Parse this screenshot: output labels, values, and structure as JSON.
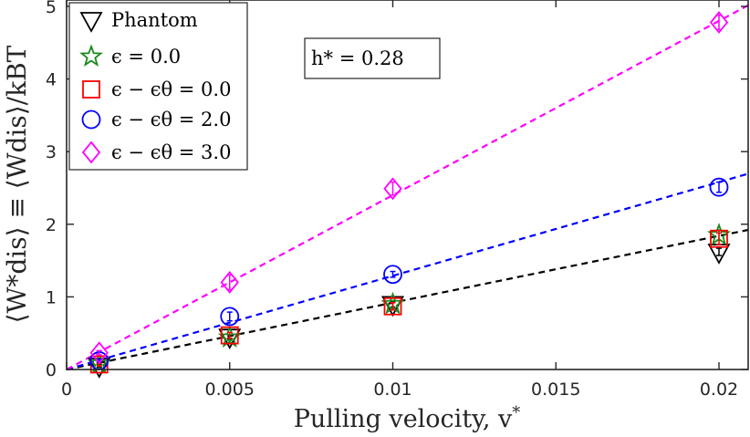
{
  "chart_data": {
    "type": "scatter",
    "title": "",
    "xlabel": "Pulling velocity, v*",
    "ylabel": "⟨W*dis⟩ ≡ ⟨Wdis⟩/kBT",
    "annotation": "h* = 0.28",
    "xlim": [
      0,
      0.021
    ],
    "ylim": [
      0,
      5.1
    ],
    "xticks": [
      0,
      0.005,
      0.01,
      0.015,
      0.02
    ],
    "xtick_labels": [
      "0",
      "0.005",
      "0.01",
      "0.015",
      "0.02"
    ],
    "yticks": [
      0,
      1,
      2,
      3,
      4,
      5
    ],
    "ytick_labels": [
      "0",
      "1",
      "2",
      "3",
      "4",
      "5"
    ],
    "legend_position": "top-left",
    "series": [
      {
        "name": "Phantom",
        "label": "Phantom",
        "marker": "triangle-down",
        "color": "#000000",
        "x": [
          0.001,
          0.005,
          0.01,
          0.02
        ],
        "y": [
          0.05,
          0.45,
          0.9,
          1.62
        ],
        "yerr": [
          0.02,
          0.03,
          0.04,
          0.05
        ]
      },
      {
        "name": "eps=0.0",
        "label": "ϵ = 0.0",
        "marker": "star",
        "color": "#1a8a1a",
        "x": [
          0.001,
          0.005,
          0.01,
          0.02
        ],
        "y": [
          0.08,
          0.44,
          0.9,
          1.85
        ],
        "yerr": [
          0.02,
          0.04,
          0.05,
          0.07
        ]
      },
      {
        "name": "eps-eps_theta=0.0",
        "label": "ϵ − ϵθ = 0.0",
        "marker": "square",
        "color": "#ff0000",
        "x": [
          0.001,
          0.005,
          0.01,
          0.02
        ],
        "y": [
          0.07,
          0.47,
          0.87,
          1.8
        ],
        "yerr": [
          0.02,
          0.04,
          0.05,
          0.08
        ]
      },
      {
        "name": "eps-eps_theta=2.0",
        "label": "ϵ − ϵθ = 2.0",
        "marker": "circle",
        "color": "#0000ff",
        "x": [
          0.001,
          0.005,
          0.01,
          0.02
        ],
        "y": [
          0.12,
          0.73,
          1.31,
          2.51
        ],
        "yerr": [
          0.02,
          0.06,
          0.04,
          0.07
        ]
      },
      {
        "name": "eps-eps_theta=3.0",
        "label": "ϵ − ϵθ = 3.0",
        "marker": "diamond",
        "color": "#ff00ff",
        "x": [
          0.001,
          0.005,
          0.01,
          0.02
        ],
        "y": [
          0.23,
          1.2,
          2.49,
          4.78
        ],
        "yerr": [
          0.03,
          0.1,
          0.09,
          0.1
        ]
      }
    ],
    "fit_lines": [
      {
        "name": "fit-black",
        "color": "#000000",
        "slope": 92
      },
      {
        "name": "fit-blue",
        "color": "#0000ff",
        "slope": 129
      },
      {
        "name": "fit-magenta",
        "color": "#ff00ff",
        "slope": 240
      }
    ]
  }
}
